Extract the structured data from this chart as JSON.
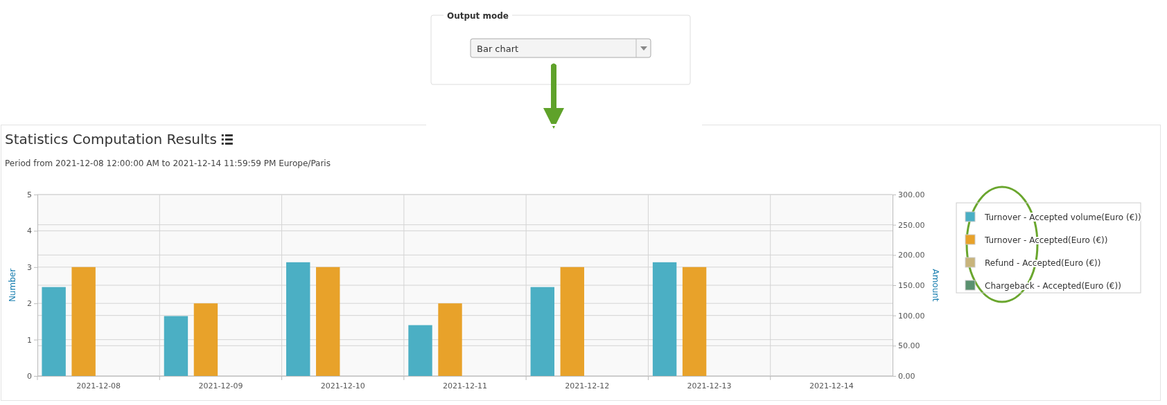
{
  "chart_data": {
    "type": "bar",
    "title": "Statistics Computation Results",
    "subtitle": "Period from 2021-12-08 12:00:00 AM to 2021-12-14 11:59:59 PM Europe/Paris",
    "ylabel": "Number",
    "y2label": "Amount",
    "annotations": [
      "Output mode",
      "Bar chart"
    ],
    "categories": [
      "2021-12-08",
      "2021-12-09",
      "2021-12-10",
      "2021-12-11",
      "2021-12-12",
      "2021-12-13",
      "2021-12-14"
    ],
    "series": [
      {
        "name": "Turnover - Accepted volume(Euro (€))",
        "color": "#4bafc4",
        "axis": "y2",
        "values": [
          147,
          99,
          188,
          84,
          147,
          188,
          null
        ]
      },
      {
        "name": "Turnover - Accepted(Euro (€))",
        "color": "#e8a22a",
        "values": [
          3,
          2,
          3,
          2,
          3,
          3,
          null
        ]
      },
      {
        "name": "Refund - Accepted(Euro (€))",
        "color": "#c8b47c",
        "axis": "y2",
        "values": [
          null,
          null,
          null,
          null,
          null,
          null,
          null
        ]
      },
      {
        "name": "Chargeback - Accepted(Euro (€))",
        "color": "#5a9170",
        "axis": "y2",
        "values": [
          null,
          null,
          null,
          null,
          null,
          null,
          null
        ]
      }
    ],
    "ylim": [
      0,
      5
    ],
    "yticks": [
      0,
      1,
      2,
      3,
      4,
      5
    ],
    "y2lim": [
      0,
      300
    ],
    "y2ticks": [
      {
        "value": 0,
        "label": "0.00"
      },
      {
        "value": 50,
        "label": "50.00"
      },
      {
        "value": 100,
        "label": "100.00"
      },
      {
        "value": 150,
        "label": "150.00"
      },
      {
        "value": 200,
        "label": "200.00"
      },
      {
        "value": 250,
        "label": "250.00"
      },
      {
        "value": 300,
        "label": "300.00"
      }
    ],
    "grid": true,
    "legend": "right"
  }
}
